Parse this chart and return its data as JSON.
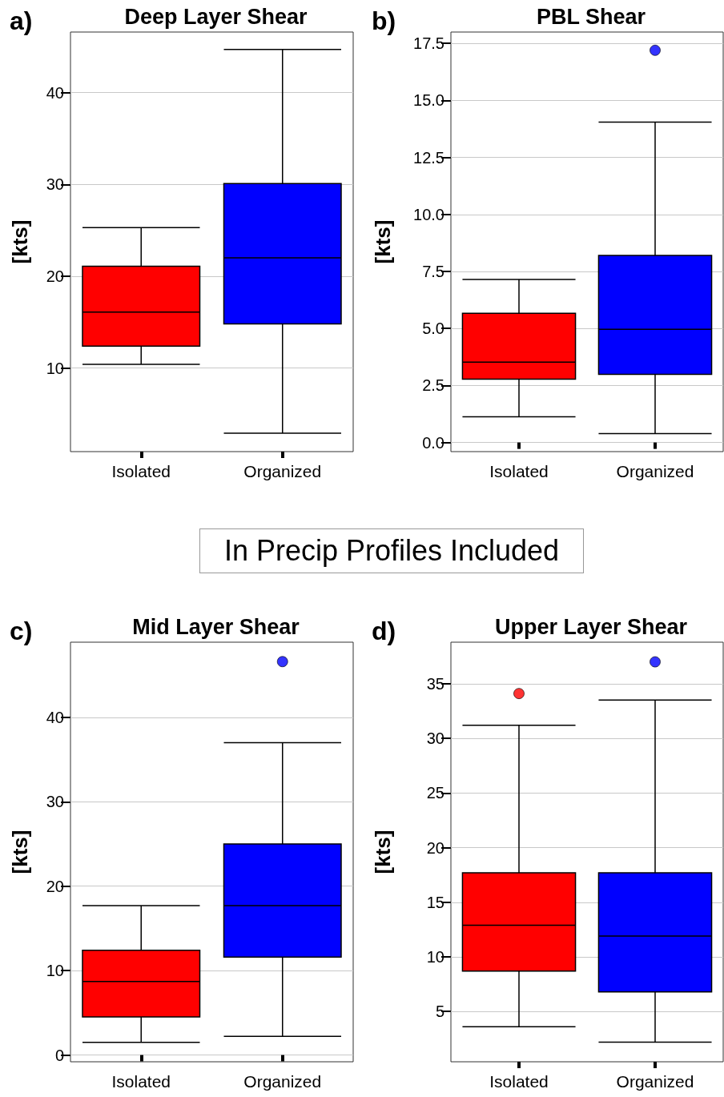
{
  "chart_data": [
    {
      "type": "box",
      "title": "Deep Layer Shear",
      "ylabel": "[kts]",
      "annotations": [
        "a)",
        "In Precip Profiles Included"
      ],
      "categories": [
        "Isolated",
        "Organized"
      ],
      "colors": [
        "#ff0000",
        "#0000ff"
      ],
      "boxes": [
        {
          "low": 10.4,
          "q1": 12.4,
          "median": 16.1,
          "q3": 21.1,
          "high": 25.3
        },
        {
          "low": 2.9,
          "q1": 14.8,
          "median": 22.0,
          "q3": 30.1,
          "high": 44.7
        }
      ],
      "ylim": [
        0.9,
        46.6
      ],
      "yticks": [
        10,
        20,
        30,
        40
      ],
      "grid": "y"
    },
    {
      "type": "box",
      "title": "PBL Shear",
      "ylabel": "[kts]",
      "annotations": [
        "b)"
      ],
      "categories": [
        "Isolated",
        "Organized"
      ],
      "colors": [
        "#ff0000",
        "#0000ff"
      ],
      "boxes": [
        {
          "low": 1.13,
          "q1": 2.78,
          "median": 3.52,
          "q3": 5.67,
          "high": 7.15
        },
        {
          "low": 0.39,
          "q1": 2.99,
          "median": 4.96,
          "q3": 8.2,
          "high": 14.05,
          "outliers": [
            17.2
          ]
        }
      ],
      "ylim": [
        -0.4,
        18.0
      ],
      "yticks": [
        {
          "value": 0,
          "label": "0.0"
        },
        {
          "value": 2.5,
          "label": "2.5"
        },
        {
          "value": 5,
          "label": "5.0"
        },
        {
          "value": 7.5,
          "label": "7.5"
        },
        {
          "value": 10,
          "label": "10.0"
        },
        {
          "value": 12.5,
          "label": "12.5"
        },
        {
          "value": 15,
          "label": "15.0"
        },
        {
          "value": 17.5,
          "label": "17.5"
        }
      ],
      "grid": "y"
    },
    {
      "type": "box",
      "title": "Mid Layer Shear",
      "ylabel": "[kts]",
      "annotations": [
        "c)"
      ],
      "categories": [
        "Isolated",
        "Organized"
      ],
      "colors": [
        "#ff0000",
        "#0000ff"
      ],
      "boxes": [
        {
          "low": 1.5,
          "q1": 4.5,
          "median": 8.7,
          "q3": 12.4,
          "high": 17.7
        },
        {
          "low": 2.2,
          "q1": 11.6,
          "median": 17.7,
          "q3": 25.0,
          "high": 37.0,
          "outliers": [
            46.6
          ]
        }
      ],
      "ylim": [
        -0.8,
        48.9
      ],
      "yticks": [
        0,
        10,
        20,
        30,
        40
      ],
      "grid": "y"
    },
    {
      "type": "box",
      "title": "Upper Layer Shear",
      "ylabel": "[kts]",
      "annotations": [
        "d)"
      ],
      "categories": [
        "Isolated",
        "Organized"
      ],
      "colors": [
        "#ff0000",
        "#0000ff"
      ],
      "boxes": [
        {
          "low": 3.6,
          "q1": 8.7,
          "median": 12.9,
          "q3": 17.7,
          "high": 31.2,
          "outliers": [
            34.1
          ]
        },
        {
          "low": 2.2,
          "q1": 6.8,
          "median": 11.9,
          "q3": 17.7,
          "high": 33.5,
          "outliers": [
            37.0
          ]
        }
      ],
      "ylim": [
        0.4,
        38.8
      ],
      "yticks": [
        5,
        10,
        15,
        20,
        25,
        30,
        35
      ],
      "grid": "y"
    }
  ]
}
